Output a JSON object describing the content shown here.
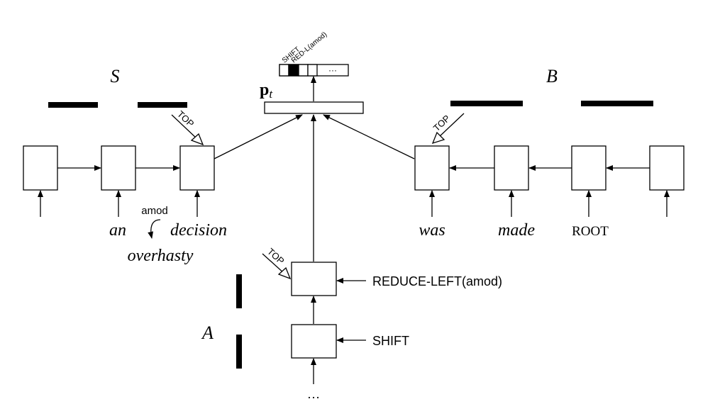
{
  "labels": {
    "stack": "S",
    "buffer": "B",
    "actions": "A",
    "pt_bold": "p",
    "pt_sub": "t",
    "top": "TOP",
    "amod": "amod",
    "ellipsis": "…",
    "ellipsis_small": "···"
  },
  "words": {
    "stack": [
      "an",
      "decision"
    ],
    "stack_child": "overhasty",
    "buffer": [
      "was",
      "made",
      "ROOT"
    ]
  },
  "actions": {
    "reduce_left": "REDUCE-LEFT(amod)",
    "shift": "SHIFT"
  },
  "output": {
    "shift": "SHIFT",
    "red_left": "RED-L(amod)"
  }
}
